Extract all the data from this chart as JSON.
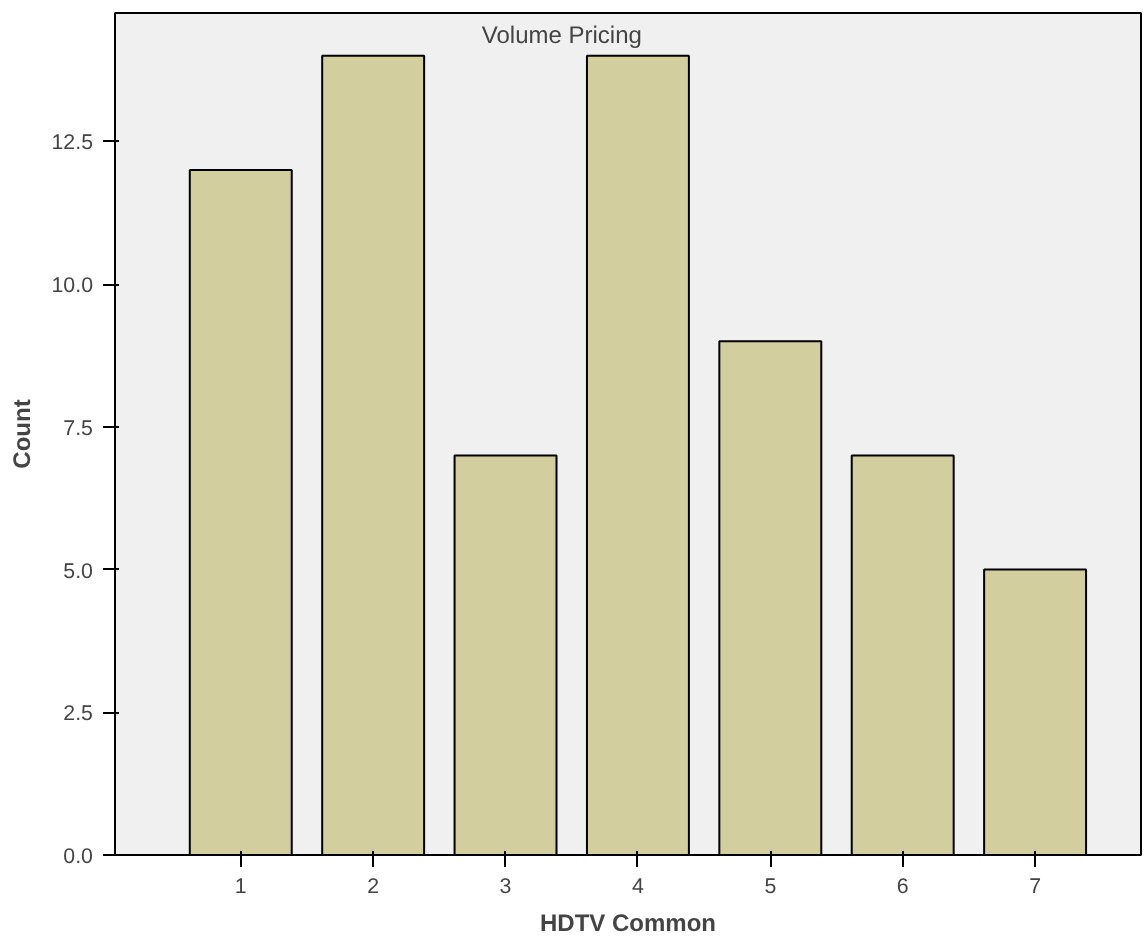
{
  "chart_data": {
    "type": "bar",
    "title": "Volume Pricing",
    "xlabel": "HDTV Common",
    "ylabel": "Count",
    "categories": [
      "1",
      "2",
      "3",
      "4",
      "5",
      "6",
      "7"
    ],
    "values": [
      12,
      14,
      7,
      14,
      9,
      7,
      5
    ],
    "color": "#d3ce9e",
    "ylim": [
      0,
      14.75
    ],
    "yticks": [
      {
        "value": 0,
        "label": "0.0"
      },
      {
        "value": 2.5,
        "label": "2.5"
      },
      {
        "value": 5,
        "label": "5.0"
      },
      {
        "value": 7.5,
        "label": "7.5"
      },
      {
        "value": 10,
        "label": "10.0"
      },
      {
        "value": 12.5,
        "label": "12.5"
      }
    ],
    "grid": false
  }
}
